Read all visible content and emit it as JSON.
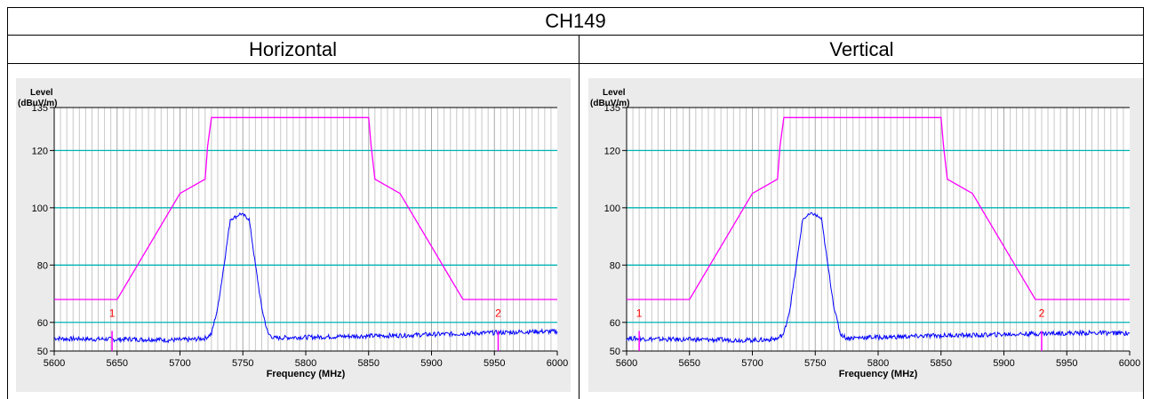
{
  "header": {
    "title": "CH149"
  },
  "polarizations": [
    "Horizontal",
    "Vertical"
  ],
  "colors": {
    "limit": "#ff00ff",
    "trace": "#0000ff",
    "reference": "#00b3b3",
    "marker": "#ff0000",
    "grid": "#c8c8c8"
  },
  "chart_data": [
    {
      "type": "line",
      "title": "Horizontal",
      "ylabel": "Level (dBuV/m)",
      "xlabel": "Frequency (MHz)",
      "xlim": [
        5600,
        6000
      ],
      "ylim": [
        50,
        135
      ],
      "x_ticks": [
        5600,
        5650,
        5700,
        5750,
        5800,
        5850,
        5900,
        5950,
        6000
      ],
      "y_ticks": [
        50,
        60,
        80,
        100,
        120,
        135
      ],
      "reference_lines": [
        60,
        80,
        100,
        120
      ],
      "series": [
        {
          "values": [
            [
              5600,
              54.5
            ],
            [
              5610,
              54.2
            ],
            [
              5620,
              54.3
            ],
            [
              5630,
              54.1
            ],
            [
              5640,
              54.2
            ],
            [
              5650,
              54.0
            ],
            [
              5660,
              54.2
            ],
            [
              5670,
              54.0
            ],
            [
              5680,
              54.1
            ],
            [
              5690,
              53.8
            ],
            [
              5700,
              53.9
            ],
            [
              5710,
              54.0
            ],
            [
              5720,
              54.5
            ],
            [
              5725,
              56.0
            ],
            [
              5730,
              65.0
            ],
            [
              5735,
              80.0
            ],
            [
              5740,
              96.0
            ],
            [
              5745,
              97.0
            ],
            [
              5748,
              98.0
            ],
            [
              5752,
              97.0
            ],
            [
              5755,
              96.0
            ],
            [
              5760,
              80.0
            ],
            [
              5765,
              65.0
            ],
            [
              5770,
              56.0
            ],
            [
              5775,
              54.5
            ],
            [
              5790,
              54.8
            ],
            [
              5800,
              54.8
            ],
            [
              5820,
              55.0
            ],
            [
              5840,
              55.2
            ],
            [
              5860,
              55.3
            ],
            [
              5880,
              55.5
            ],
            [
              5900,
              55.8
            ],
            [
              5920,
              56.0
            ],
            [
              5940,
              56.3
            ],
            [
              5960,
              56.5
            ],
            [
              5980,
              56.8
            ],
            [
              6000,
              56.8
            ]
          ]
        },
        {
          "values": [
            [
              5600,
              68
            ],
            [
              5650,
              68
            ],
            [
              5700,
              105
            ],
            [
              5720,
              110
            ],
            [
              5722,
              121.5
            ],
            [
              5725,
              131.5
            ],
            [
              5850,
              131.5
            ],
            [
              5852,
              121.5
            ],
            [
              5855,
              110
            ],
            [
              5875,
              105
            ],
            [
              5925,
              68
            ],
            [
              6000,
              68
            ]
          ]
        }
      ],
      "markers": [
        {
          "label": "1",
          "x": 5646
        },
        {
          "label": "2",
          "x": 5953
        }
      ]
    },
    {
      "type": "line",
      "title": "Vertical",
      "ylabel": "Level (dBuV/m)",
      "xlabel": "Frequency (MHz)",
      "xlim": [
        5600,
        6000
      ],
      "ylim": [
        50,
        135
      ],
      "x_ticks": [
        5600,
        5650,
        5700,
        5750,
        5800,
        5850,
        5900,
        5950,
        6000
      ],
      "y_ticks": [
        50,
        60,
        80,
        100,
        120,
        135
      ],
      "reference_lines": [
        60,
        80,
        100,
        120
      ],
      "series": [
        {
          "values": [
            [
              5600,
              54.5
            ],
            [
              5610,
              54.3
            ],
            [
              5620,
              54.2
            ],
            [
              5630,
              54.1
            ],
            [
              5640,
              54.0
            ],
            [
              5650,
              54.0
            ],
            [
              5660,
              54.0
            ],
            [
              5670,
              53.9
            ],
            [
              5680,
              53.9
            ],
            [
              5690,
              53.8
            ],
            [
              5700,
              53.8
            ],
            [
              5710,
              53.9
            ],
            [
              5720,
              54.3
            ],
            [
              5725,
              56.0
            ],
            [
              5730,
              65.0
            ],
            [
              5735,
              80.0
            ],
            [
              5740,
              96.0
            ],
            [
              5745,
              97.5
            ],
            [
              5748,
              98.0
            ],
            [
              5752,
              97.0
            ],
            [
              5755,
              96.0
            ],
            [
              5760,
              80.0
            ],
            [
              5765,
              65.0
            ],
            [
              5770,
              56.0
            ],
            [
              5775,
              54.5
            ],
            [
              5790,
              54.8
            ],
            [
              5800,
              54.8
            ],
            [
              5820,
              55.0
            ],
            [
              5840,
              55.3
            ],
            [
              5860,
              55.5
            ],
            [
              5880,
              55.5
            ],
            [
              5900,
              55.8
            ],
            [
              5920,
              56.0
            ],
            [
              5940,
              56.2
            ],
            [
              5960,
              56.3
            ],
            [
              5980,
              56.3
            ],
            [
              6000,
              56.2
            ]
          ]
        },
        {
          "values": [
            [
              5600,
              68
            ],
            [
              5650,
              68
            ],
            [
              5700,
              105
            ],
            [
              5720,
              110
            ],
            [
              5722,
              121.5
            ],
            [
              5725,
              131.5
            ],
            [
              5850,
              131.5
            ],
            [
              5852,
              121.5
            ],
            [
              5855,
              110
            ],
            [
              5875,
              105
            ],
            [
              5925,
              68
            ],
            [
              6000,
              68
            ]
          ]
        }
      ],
      "markers": [
        {
          "label": "1",
          "x": 5610
        },
        {
          "label": "2",
          "x": 5930
        }
      ]
    }
  ]
}
